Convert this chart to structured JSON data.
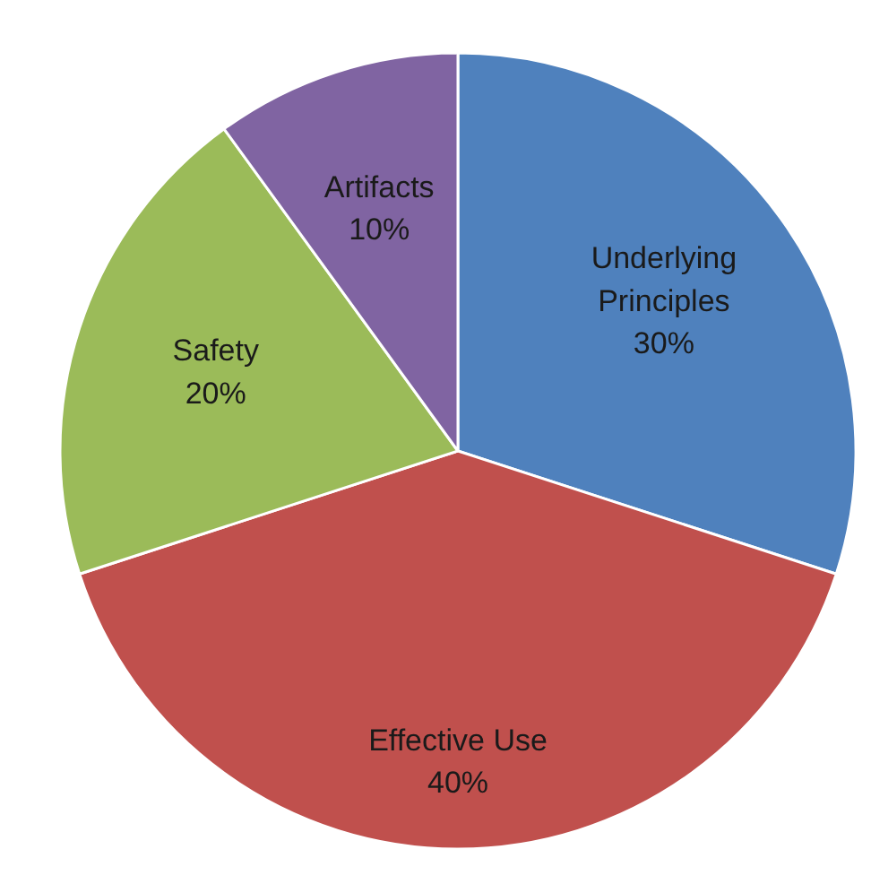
{
  "chart_data": {
    "type": "pie",
    "categories": [
      "Underlying Principles",
      "Effective Use",
      "Safety",
      "Artifacts"
    ],
    "values": [
      30,
      40,
      20,
      10
    ],
    "colors": [
      "#4f81bd",
      "#c0504d",
      "#9bbb59",
      "#8064a2"
    ],
    "value_labels": [
      "30%",
      "40%",
      "20%",
      "10%"
    ]
  }
}
